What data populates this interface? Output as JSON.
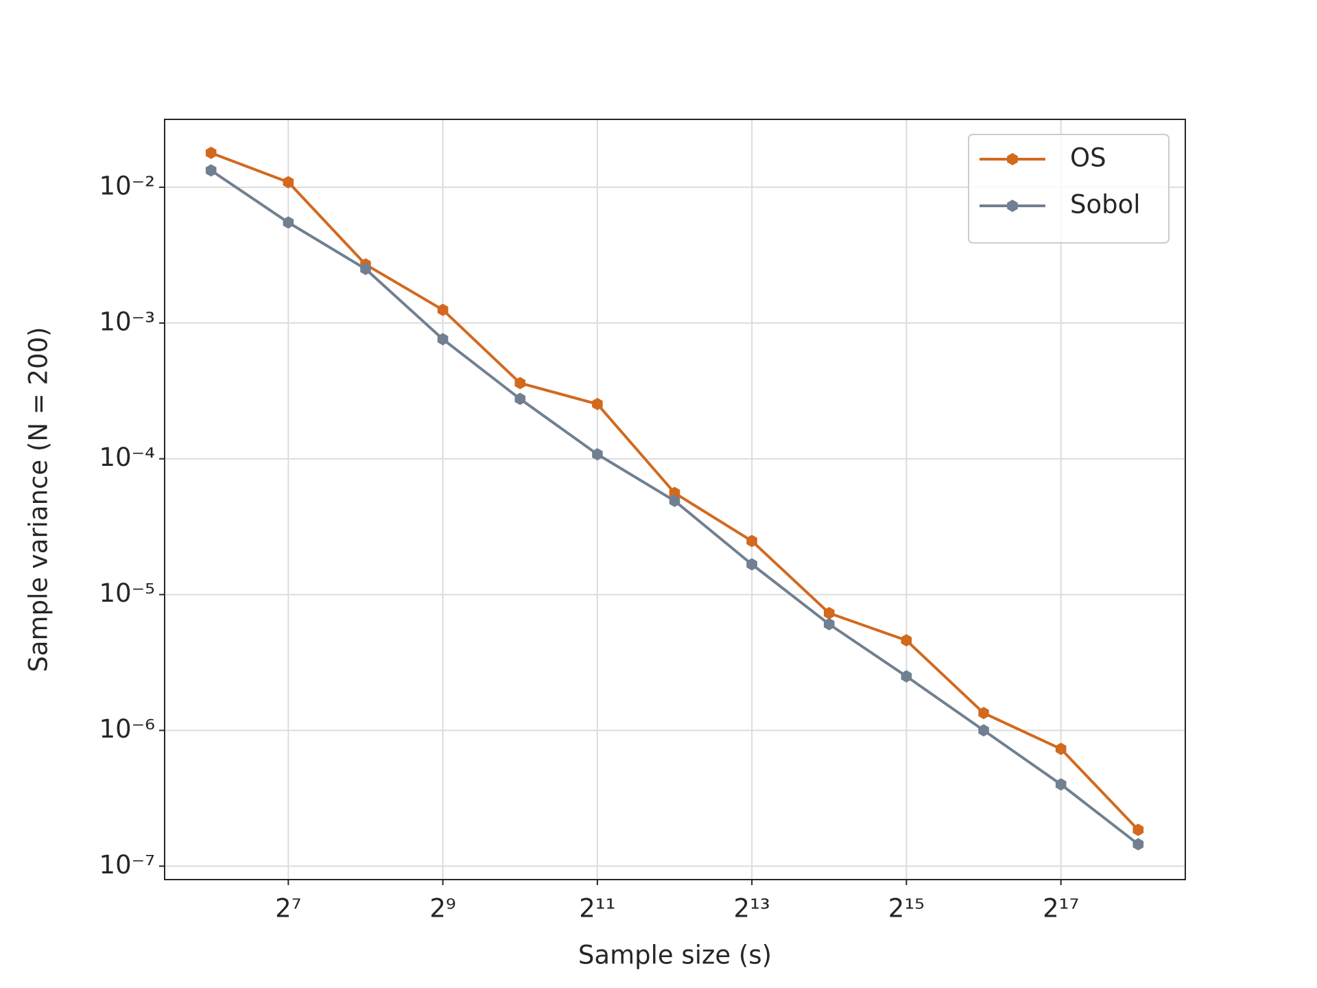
{
  "chart_data": {
    "type": "line",
    "xlabel": "Sample size (s)",
    "ylabel": "Sample variance (N = 200)",
    "x": [
      64,
      128,
      256,
      512,
      1024,
      2048,
      4096,
      8192,
      16384,
      32768,
      65536,
      131072,
      262144
    ],
    "series": [
      {
        "name": "OS",
        "color": "#d2691e",
        "values": [
          0.0179,
          0.0109,
          0.0027,
          0.00125,
          0.000361,
          0.000253,
          5.6e-05,
          2.48e-05,
          7.3e-06,
          4.6e-06,
          1.34e-06,
          7.3e-07,
          1.85e-07
        ]
      },
      {
        "name": "Sobol",
        "color": "#708090",
        "values": [
          0.0133,
          0.0055,
          0.0025,
          0.00076,
          0.000276,
          0.000108,
          4.9e-05,
          1.67e-05,
          6.05e-06,
          2.5e-06,
          1e-06,
          4e-07,
          1.45e-07
        ]
      }
    ],
    "xscale": "log2",
    "yscale": "log10",
    "xlim": [
      42.2,
      400000
    ],
    "ylim": [
      7.96e-08,
      0.0316
    ],
    "xticks": [
      {
        "value": 128,
        "label": "2⁷"
      },
      {
        "value": 512,
        "label": "2⁹"
      },
      {
        "value": 2048,
        "label": "2¹¹"
      },
      {
        "value": 8192,
        "label": "2¹³"
      },
      {
        "value": 32768,
        "label": "2¹⁵"
      },
      {
        "value": 131072,
        "label": "2¹⁷"
      }
    ],
    "yticks": [
      {
        "value": 0.01,
        "label": "10⁻²"
      },
      {
        "value": 0.001,
        "label": "10⁻³"
      },
      {
        "value": 0.0001,
        "label": "10⁻⁴"
      },
      {
        "value": 1e-05,
        "label": "10⁻⁵"
      },
      {
        "value": 1e-06,
        "label": "10⁻⁶"
      },
      {
        "value": 1e-07,
        "label": "10⁻⁷"
      }
    ],
    "grid": true,
    "legend": "upper right"
  }
}
